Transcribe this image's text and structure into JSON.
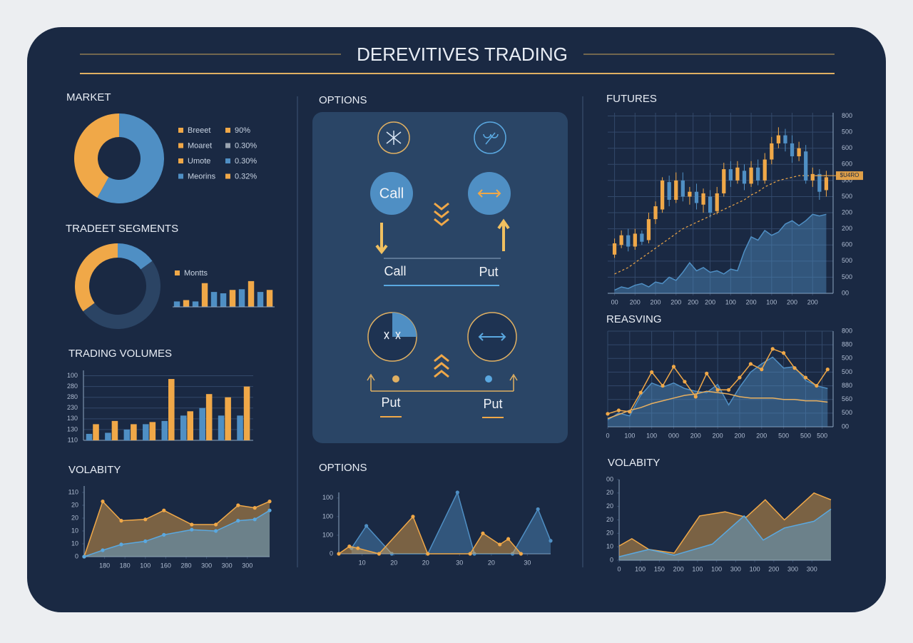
{
  "header": {
    "title": "DEREVITIVES TRADING"
  },
  "options_panel": {
    "title": "OPTIONS",
    "call_button": "Call",
    "call_label": "Call",
    "put_label": "Put",
    "put_left": "Put",
    "put_right": "Put"
  },
  "chart_data": [
    {
      "type": "pie",
      "title": "MARKET",
      "values": [
        42,
        58
      ],
      "colors": [
        "#f0a848",
        "#4f8fc4"
      ],
      "legend": {
        "labels": [
          "Breeet",
          "Moaret",
          "Umote",
          "Meorins"
        ],
        "label_colors": [
          "#f0a848",
          "#f0a848",
          "#f0a848",
          "#4f8fc4"
        ],
        "value_texts": [
          "90%",
          "0.30%",
          "0.30%",
          "0.32%"
        ],
        "value_colors": [
          "#f0a848",
          "#9aa4b0",
          "#4f8fc4",
          "#f0a848"
        ]
      }
    },
    {
      "type": "pie",
      "title": "TRADEET SEGMENTS",
      "values": [
        15,
        50,
        35
      ],
      "colors": [
        "#4f8fc4",
        "#2b4464",
        "#f0a848"
      ]
    },
    {
      "type": "bar",
      "categories": [
        null,
        null,
        null,
        null,
        null,
        null,
        null,
        null,
        null,
        null,
        null
      ],
      "ylim": [
        0,
        40
      ],
      "series": [
        {
          "name": "Montts",
          "color": "#f0a848",
          "colors": [
            "#4f8fc4",
            "#f0a848",
            "#4f8fc4",
            "#f0a848",
            "#4f8fc4",
            "#4f8fc4",
            "#f0a848",
            "#4f8fc4",
            "#f0a848",
            "#4f8fc4",
            "#f0a848"
          ],
          "values": [
            8,
            10,
            8,
            35,
            22,
            20,
            25,
            26,
            38,
            22,
            25
          ]
        }
      ]
    },
    {
      "type": "bar",
      "title": "TRADING VOLUMES",
      "categories": [
        null,
        null,
        null,
        null,
        null,
        null,
        null,
        null,
        null
      ],
      "ylim": [
        0,
        6.5
      ],
      "grid": true,
      "yticks": [
        {
          "value": 0,
          "label": "110"
        },
        {
          "value": 1,
          "label": "130"
        },
        {
          "value": 2,
          "label": "130"
        },
        {
          "value": 3,
          "label": "230"
        },
        {
          "value": 4,
          "label": "280"
        },
        {
          "value": 5,
          "label": "280"
        },
        {
          "value": 6,
          "label": "100"
        }
      ],
      "series": [
        {
          "color": "#4f8fc4",
          "values": [
            0.6,
            0.7,
            1.0,
            1.5,
            1.8,
            2.3,
            3.0,
            2.3,
            2.3
          ]
        },
        {
          "color": "#f0a848",
          "values": [
            1.5,
            1.8,
            1.5,
            1.7,
            5.7,
            2.7,
            4.3,
            4.0,
            5.0
          ]
        }
      ]
    },
    {
      "type": "area",
      "title": "VOLABITY",
      "x": [
        0,
        1,
        2,
        3.3,
        4.3,
        5.8,
        7.1,
        8.3,
        9.2,
        10
      ],
      "xlim": [
        0,
        10
      ],
      "ylim": [
        0,
        5.5
      ],
      "yticks": [
        0,
        {
          "value": 1,
          "label": "10"
        },
        {
          "value": 2,
          "label": "10"
        },
        {
          "value": 3,
          "label": "20"
        },
        {
          "value": 4,
          "label": "20"
        },
        {
          "value": 5,
          "label": "110"
        }
      ],
      "xticks": [
        {
          "value": 1.1,
          "label": "180"
        },
        {
          "value": 2.2,
          "label": "180"
        },
        {
          "value": 3.3,
          "label": "100"
        },
        {
          "value": 4.4,
          "label": "160"
        },
        {
          "value": 5.5,
          "label": "280"
        },
        {
          "value": 6.6,
          "label": "300"
        },
        {
          "value": 7.7,
          "label": "300"
        },
        {
          "value": 8.8,
          "label": "300"
        }
      ],
      "series": [
        {
          "color": "#f0a848",
          "fill": true,
          "markers": true,
          "values": [
            0,
            4.3,
            2.8,
            2.9,
            3.6,
            2.5,
            2.5,
            4.0,
            3.8,
            4.3
          ]
        },
        {
          "color": "#5aa8e0",
          "fill": true,
          "markers": true,
          "values": [
            0,
            0.5,
            0.95,
            1.2,
            1.7,
            2.1,
            2.0,
            2.8,
            2.9,
            3.6
          ]
        }
      ]
    },
    {
      "type": "area",
      "title": "OPTIONS",
      "xlim": [
        0,
        100
      ],
      "ylim": [
        0,
        3.3
      ],
      "yticks": [
        0,
        {
          "value": 1,
          "label": "100"
        },
        {
          "value": 2,
          "label": "100"
        },
        {
          "value": 3,
          "label": "100"
        }
      ],
      "xticks": [
        {
          "value": 11,
          "label": "10"
        },
        {
          "value": 26,
          "label": "20"
        },
        {
          "value": 41,
          "label": "20"
        },
        {
          "value": 57,
          "label": "30"
        },
        {
          "value": 72,
          "label": "20"
        },
        {
          "value": 89,
          "label": "30"
        }
      ],
      "series": [
        {
          "color": "#4f8fc4",
          "fill": true,
          "markers": true,
          "x": [
            6,
            13,
            25,
            42,
            56,
            64,
            82,
            94,
            100
          ],
          "values": [
            0.3,
            1.5,
            0,
            0,
            3.3,
            0,
            0,
            2.4,
            0.7
          ]
        },
        {
          "color": "#f0a848",
          "fill": true,
          "markers": true,
          "x": [
            0,
            5,
            9,
            19,
            35,
            42,
            62,
            68,
            76,
            80,
            86
          ],
          "values": [
            0,
            0.4,
            0.3,
            0,
            2,
            0,
            0,
            1.1,
            0.5,
            0.8,
            0
          ]
        }
      ]
    },
    {
      "type": "candlestick",
      "title": "FUTURES",
      "xlim": [
        -1,
        32
      ],
      "ylim": [
        0,
        11.2
      ],
      "grid": true,
      "yaxis_position": "right",
      "yticks": [
        {
          "value": 0,
          "label": "00"
        },
        {
          "value": 1,
          "label": "500"
        },
        {
          "value": 2,
          "label": "500"
        },
        {
          "value": 3,
          "label": "600"
        },
        {
          "value": 4,
          "label": "200"
        },
        {
          "value": 5,
          "label": "200"
        },
        {
          "value": 6,
          "label": "500"
        },
        {
          "value": 7,
          "label": "500"
        },
        {
          "value": 8,
          "label": "600"
        },
        {
          "value": 9,
          "label": "600"
        },
        {
          "value": 10,
          "label": "500"
        },
        {
          "value": 11,
          "label": "800"
        }
      ],
      "xticks": [
        {
          "value": 0,
          "label": "00"
        },
        {
          "value": 3,
          "label": "200"
        },
        {
          "value": 6,
          "label": "200"
        },
        {
          "value": 9,
          "label": "200"
        },
        {
          "value": 11.5,
          "label": "200"
        },
        {
          "value": 14,
          "label": "200"
        },
        {
          "value": 17,
          "label": "100"
        },
        {
          "value": 20,
          "label": "200"
        },
        {
          "value": 23,
          "label": "100"
        },
        {
          "value": 26,
          "label": "200"
        },
        {
          "value": 29,
          "label": "200"
        }
      ],
      "price_label": {
        "value": 7.3,
        "label": "$U4RO"
      },
      "up_color": "#f0a848",
      "down_color": "#4f8fc4",
      "open": [
        2.4,
        3.0,
        3.6,
        2.9,
        3.7,
        3.3,
        4.6,
        5.2,
        6.9,
        5.8,
        7.0,
        6.0,
        6.3,
        5.5,
        6.0,
        5.1,
        6.2,
        7.7,
        7.0,
        7.6,
        6.8,
        7.8,
        7.0,
        8.3,
        9.3,
        9.8,
        9.3,
        8.5,
        8.8,
        7.0,
        7.4,
        6.4
      ],
      "close": [
        3.1,
        3.6,
        2.9,
        3.7,
        3.2,
        4.6,
        5.4,
        7.0,
        5.8,
        7.0,
        6.0,
        6.3,
        5.6,
        6.2,
        5.0,
        6.2,
        7.7,
        7.0,
        7.8,
        6.8,
        7.8,
        7.0,
        8.3,
        9.3,
        9.8,
        9.3,
        8.5,
        9.0,
        7.0,
        7.4,
        6.3,
        7.2
      ],
      "high": [
        3.4,
        3.9,
        4.0,
        4.0,
        3.9,
        5.0,
        5.7,
        7.2,
        7.3,
        7.5,
        7.5,
        6.6,
        6.8,
        6.5,
        6.4,
        6.6,
        8.1,
        8.2,
        8.2,
        8.0,
        8.2,
        8.3,
        8.7,
        9.7,
        10.3,
        10.2,
        9.8,
        9.4,
        9.2,
        7.8,
        7.7,
        7.6
      ],
      "low": [
        2.2,
        2.8,
        2.6,
        2.7,
        3.0,
        3.1,
        4.3,
        5.0,
        5.4,
        5.6,
        5.7,
        5.5,
        5.2,
        5.0,
        4.7,
        4.9,
        6.0,
        6.6,
        6.8,
        6.4,
        6.6,
        6.7,
        6.8,
        8.0,
        9.0,
        8.8,
        8.1,
        8.2,
        6.8,
        6.6,
        5.8,
        6.0
      ],
      "series": [
        {
          "color": "#4f8fc4",
          "fill": true,
          "values": [
            0.2,
            0.4,
            0.3,
            0.5,
            0.6,
            0.4,
            0.7,
            0.6,
            1.0,
            0.8,
            1.3,
            1.9,
            1.4,
            1.6,
            1.3,
            1.4,
            1.2,
            1.5,
            1.4,
            2.6,
            3.5,
            3.3,
            3.9,
            3.6,
            3.8,
            4.3,
            4.5,
            4.2,
            4.5,
            4.9,
            4.8,
            4.9
          ]
        },
        {
          "color": "#f0a848",
          "dashed": true,
          "values": [
            1.2,
            1.4,
            1.6,
            1.9,
            2.2,
            2.5,
            2.8,
            3.1,
            3.4,
            3.7,
            4.0,
            4.2,
            4.4,
            4.6,
            4.8,
            5.0,
            5.2,
            5.4,
            5.6,
            5.8,
            6.1,
            6.3,
            6.6,
            6.8,
            7.0,
            7.1,
            7.2,
            7.3,
            7.3,
            7.3,
            7.3,
            7.3
          ]
        }
      ]
    },
    {
      "type": "area",
      "title": "REASVING",
      "xlim": [
        0,
        20.5
      ],
      "ylim": [
        0,
        7
      ],
      "grid": true,
      "yaxis_position": "right",
      "yticks": [
        {
          "value": 0,
          "label": "00"
        },
        {
          "value": 1,
          "label": "500"
        },
        {
          "value": 2,
          "label": "560"
        },
        {
          "value": 3,
          "label": "880"
        },
        {
          "value": 4,
          "label": "500"
        },
        {
          "value": 5,
          "label": "500"
        },
        {
          "value": 6,
          "label": "880"
        },
        {
          "value": 7,
          "label": "800"
        }
      ],
      "xticks": [
        0,
        {
          "value": 2,
          "label": "100"
        },
        {
          "value": 4,
          "label": "100"
        },
        {
          "value": 6,
          "label": "000"
        },
        {
          "value": 8,
          "label": "200"
        },
        {
          "value": 10,
          "label": "200"
        },
        {
          "value": 12,
          "label": "200"
        },
        {
          "value": 14,
          "label": "200"
        },
        {
          "value": 16,
          "label": "500"
        },
        {
          "value": 18,
          "label": "500"
        },
        {
          "value": 19.5,
          "label": "500"
        }
      ],
      "series": [
        {
          "color": "#4f8fc4",
          "fill": true,
          "values": [
            0.5,
            1.0,
            0.8,
            2.3,
            3.2,
            2.9,
            3.2,
            2.8,
            2.6,
            2.5,
            3.1,
            1.6,
            2.9,
            4.0,
            4.6,
            5.1,
            4.3,
            4.4,
            3.4,
            3.0,
            2.8
          ]
        },
        {
          "color": "#f0a848",
          "markers": true,
          "values": [
            0.95,
            1.2,
            1.1,
            2.5,
            4.0,
            3.0,
            4.4,
            3.3,
            2.2,
            3.9,
            2.7,
            2.7,
            3.6,
            4.6,
            4.2,
            5.7,
            5.4,
            4.3,
            3.6,
            3.0,
            4.2
          ]
        },
        {
          "color": "#e8b060",
          "values": [
            0.6,
            0.9,
            1.2,
            1.4,
            1.7,
            1.9,
            2.1,
            2.3,
            2.4,
            2.6,
            2.5,
            2.4,
            2.2,
            2.1,
            2.1,
            2.1,
            2.0,
            2.0,
            1.9,
            1.9,
            1.8
          ]
        }
      ]
    },
    {
      "type": "area",
      "title": "VOLABITY",
      "xlim": [
        0,
        100
      ],
      "ylim": [
        0,
        6
      ],
      "yticks": [
        0,
        {
          "value": 1,
          "label": "10"
        },
        {
          "value": 2,
          "label": "20"
        },
        {
          "value": 3,
          "label": "20"
        },
        {
          "value": 4,
          "label": "20"
        },
        {
          "value": 5,
          "label": "20"
        },
        {
          "value": 6,
          "label": "00"
        }
      ],
      "xticks": [
        0,
        {
          "value": 10,
          "label": "100"
        },
        {
          "value": 19,
          "label": "150"
        },
        {
          "value": 28,
          "label": "200"
        },
        {
          "value": 37,
          "label": "100"
        },
        {
          "value": 46,
          "label": "100"
        },
        {
          "value": 55,
          "label": "300"
        },
        {
          "value": 64,
          "label": "100"
        },
        {
          "value": 73,
          "label": "200"
        },
        {
          "value": 82,
          "label": "300"
        },
        {
          "value": 91,
          "label": "300"
        }
      ],
      "series": [
        {
          "color": "#f0a848",
          "fill": true,
          "x": [
            0,
            6,
            14,
            26,
            38,
            50,
            60,
            69,
            78,
            92,
            100
          ],
          "values": [
            1.06,
            1.6,
            0.8,
            0.53,
            3.3,
            3.6,
            3.2,
            4.5,
            3.0,
            5.0,
            4.5
          ]
        },
        {
          "color": "#5aa8e0",
          "fill": true,
          "x": [
            0,
            14,
            26,
            44,
            59,
            68,
            78,
            92,
            100
          ],
          "values": [
            0.26,
            0.8,
            0.37,
            1.2,
            3.3,
            1.5,
            2.4,
            2.9,
            3.8
          ]
        }
      ]
    }
  ]
}
